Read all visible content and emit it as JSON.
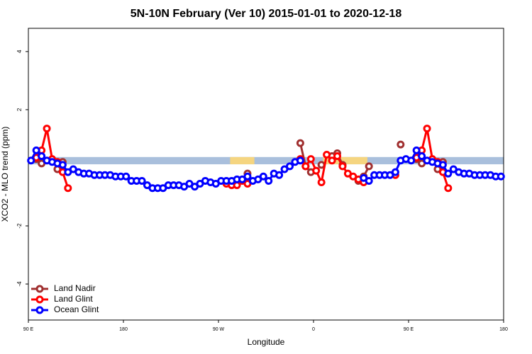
{
  "chart_data": {
    "type": "line",
    "title": "5N-10N February (Ver 10)   2015-01-01 to 2020-12-18",
    "x_label": "Longitude",
    "y_label": "XCO2 - MLO trend (ppm)",
    "xlim": [
      90,
      540
    ],
    "ylim": [
      -5.24,
      4.8
    ],
    "xticks": [
      {
        "value": 90,
        "label": "90 E"
      },
      {
        "value": 180,
        "label": "180"
      },
      {
        "value": 270,
        "label": "90 W"
      },
      {
        "value": 360,
        "label": "0"
      },
      {
        "value": 450,
        "label": "90 E"
      },
      {
        "value": 540,
        "label": "180"
      }
    ],
    "yticks": [
      -4,
      -2,
      2,
      4
    ],
    "legend": "bottom-left",
    "surface_band": {
      "ylim": [
        0.12,
        0.37
      ],
      "ocean_color": "#a9bfdc",
      "land_color": "#f5d580",
      "land": [
        [
          281,
          304
        ],
        [
          369,
          411
        ]
      ]
    },
    "x": [
      92.5,
      97.5,
      102.5,
      107.5,
      112.5,
      117.5,
      122.5,
      127.5,
      132.5,
      137.5,
      142.5,
      147.5,
      152.5,
      157.5,
      162.5,
      167.5,
      172.5,
      177.5,
      182.5,
      187.5,
      192.5,
      197.5,
      202.5,
      207.5,
      212.5,
      217.5,
      222.5,
      227.5,
      232.5,
      237.5,
      242.5,
      247.5,
      252.5,
      257.5,
      262.5,
      267.5,
      272.5,
      277.5,
      282.5,
      287.5,
      292.5,
      297.5,
      302.5,
      307.5,
      312.5,
      317.5,
      322.5,
      327.5,
      332.5,
      337.5,
      342.5,
      347.5,
      352.5,
      357.5,
      362.5,
      367.5,
      372.5,
      377.5,
      382.5,
      387.5,
      392.5,
      397.5,
      402.5,
      407.5,
      412.5,
      417.5,
      422.5,
      427.5,
      432.5,
      437.5,
      442.5,
      447.5,
      452.5,
      457.5,
      462.5,
      467.5,
      472.5,
      477.5,
      482.5,
      487.5,
      492.5,
      497.5,
      502.5,
      507.5,
      512.5,
      517.5,
      522.5,
      527.5,
      532.5,
      537.5
    ],
    "series": [
      {
        "name": "Land Nadir",
        "color": "#a03030",
        "values": [
          null,
          0.3,
          0.15,
          null,
          null,
          -0.05,
          0.2,
          null,
          null,
          null,
          null,
          null,
          null,
          null,
          null,
          null,
          null,
          null,
          null,
          null,
          null,
          null,
          null,
          null,
          null,
          null,
          null,
          null,
          null,
          null,
          null,
          null,
          null,
          null,
          null,
          null,
          null,
          null,
          null,
          null,
          null,
          -0.2,
          null,
          null,
          null,
          null,
          null,
          null,
          null,
          null,
          null,
          0.85,
          0.05,
          -0.15,
          null,
          0.1,
          null,
          0.4,
          0.5,
          0.1,
          null,
          null,
          -0.45,
          -0.3,
          0.05,
          null,
          null,
          null,
          null,
          null,
          0.8,
          null,
          null,
          0.3,
          0.15,
          null,
          null,
          -0.05,
          0.2,
          null,
          null,
          null,
          null,
          null,
          null,
          null,
          null,
          null,
          null,
          null
        ]
      },
      {
        "name": "Land Glint",
        "color": "#ff0000",
        "values": [
          null,
          0.35,
          0.6,
          1.35,
          0.3,
          0.2,
          -0.15,
          -0.7,
          null,
          null,
          null,
          null,
          null,
          null,
          null,
          null,
          null,
          null,
          null,
          null,
          null,
          null,
          null,
          null,
          null,
          null,
          null,
          null,
          null,
          null,
          null,
          null,
          null,
          null,
          null,
          null,
          null,
          -0.55,
          -0.6,
          -0.6,
          -0.45,
          -0.55,
          null,
          null,
          null,
          null,
          null,
          null,
          null,
          null,
          null,
          0.3,
          0.05,
          0.3,
          -0.1,
          -0.5,
          0.45,
          0.25,
          0.4,
          0.05,
          -0.2,
          -0.3,
          -0.4,
          -0.5,
          null,
          null,
          null,
          null,
          null,
          -0.25,
          null,
          null,
          null,
          0.35,
          0.6,
          1.35,
          0.3,
          0.2,
          -0.15,
          -0.7,
          null,
          null,
          null,
          null,
          null,
          null,
          null,
          null,
          null,
          null
        ]
      },
      {
        "name": "Ocean Glint",
        "color": "#0000ff",
        "values": [
          0.25,
          0.6,
          0.4,
          0.25,
          0.2,
          0.15,
          0.1,
          -0.15,
          -0.05,
          -0.15,
          -0.2,
          -0.2,
          -0.25,
          -0.25,
          -0.25,
          -0.25,
          -0.3,
          -0.3,
          -0.3,
          -0.45,
          -0.45,
          -0.45,
          -0.6,
          -0.7,
          -0.7,
          -0.7,
          -0.6,
          -0.6,
          -0.6,
          -0.65,
          -0.55,
          -0.65,
          -0.55,
          -0.45,
          -0.5,
          -0.55,
          -0.45,
          -0.45,
          -0.45,
          -0.4,
          -0.4,
          -0.3,
          -0.45,
          -0.4,
          -0.3,
          -0.45,
          -0.2,
          -0.25,
          -0.05,
          0.05,
          0.2,
          0.25,
          null,
          null,
          null,
          null,
          null,
          null,
          null,
          null,
          null,
          null,
          null,
          -0.35,
          -0.45,
          -0.25,
          -0.25,
          -0.25,
          -0.25,
          -0.15,
          0.25,
          0.3,
          0.25,
          0.6,
          0.4,
          0.25,
          0.2,
          0.15,
          0.1,
          -0.2,
          -0.05,
          -0.15,
          -0.2,
          -0.2,
          -0.25,
          -0.25,
          -0.25,
          -0.25,
          -0.3,
          -0.3
        ]
      }
    ]
  }
}
